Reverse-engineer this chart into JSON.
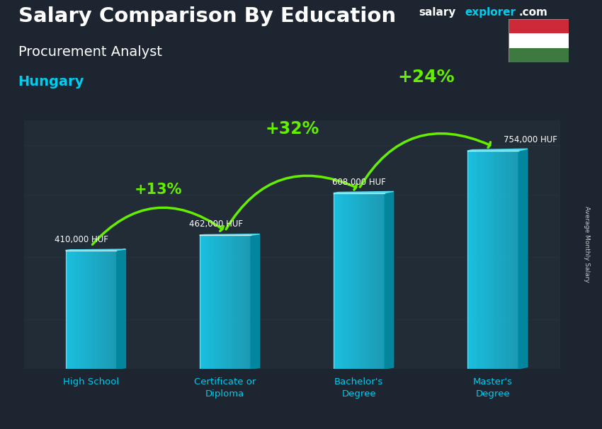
{
  "title_main": "Salary Comparison By Education",
  "title_sub": "Procurement Analyst",
  "title_country": "Hungary",
  "categories": [
    "High School",
    "Certificate or\nDiploma",
    "Bachelor's\nDegree",
    "Master's\nDegree"
  ],
  "values": [
    410000,
    462000,
    608000,
    754000
  ],
  "value_labels": [
    "410,000 HUF",
    "462,000 HUF",
    "608,000 HUF",
    "754,000 HUF"
  ],
  "pct_changes": [
    "+13%",
    "+32%",
    "+24%"
  ],
  "pct_fontsizes": [
    15,
    17,
    18
  ],
  "bar_color_front": "#1ac8e8",
  "bar_color_side": "#0090aa",
  "bar_color_top": "#55e0f5",
  "text_color_white": "#ffffff",
  "text_color_cyan": "#00ccee",
  "text_color_green": "#66ee00",
  "ylabel_text": "Average Monthly Salary",
  "ylim": [
    0,
    860000
  ],
  "bar_width": 0.38,
  "x_positions": [
    0,
    1,
    2,
    3
  ],
  "bg_dark": "#1c2530",
  "logo_salary_color": "#ffffff",
  "logo_explorer_color": "#00ccee",
  "flag_red": "#ce2939",
  "flag_white": "#ffffff",
  "flag_green": "#3d7a40"
}
